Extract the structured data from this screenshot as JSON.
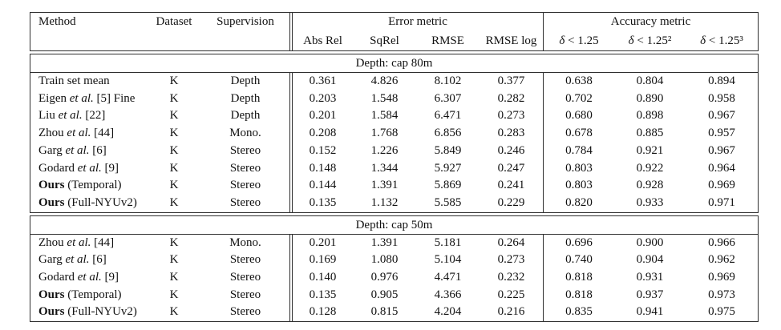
{
  "table": {
    "columns": {
      "method": "Method",
      "dataset": "Dataset",
      "supervision": "Supervision",
      "error_group": "Error metric",
      "accuracy_group": "Accuracy metric",
      "error_cols": [
        "Abs Rel",
        "SqRel",
        "RMSE",
        "RMSE log"
      ],
      "acc_cols": [
        {
          "sym": "δ",
          "cond": " < 1.25"
        },
        {
          "sym": "δ",
          "cond": " < 1.25²"
        },
        {
          "sym": "δ",
          "cond": " < 1.25³"
        }
      ]
    },
    "sections": [
      {
        "title": "Depth: cap 80m",
        "rows": [
          {
            "method": {
              "pre": "Train set mean",
              "it": "",
              "post": "",
              "bold": false
            },
            "dataset": "K",
            "supervision": "Depth",
            "abs_rel": "0.361",
            "sq_rel": "4.826",
            "rmse": "8.102",
            "rmse_log": "0.377",
            "d1": "0.638",
            "d2": "0.804",
            "d3": "0.894"
          },
          {
            "method": {
              "pre": "Eigen ",
              "it": "et al.",
              "post": " [5] Fine",
              "bold": false
            },
            "dataset": "K",
            "supervision": "Depth",
            "abs_rel": "0.203",
            "sq_rel": "1.548",
            "rmse": "6.307",
            "rmse_log": "0.282",
            "d1": "0.702",
            "d2": "0.890",
            "d3": "0.958"
          },
          {
            "method": {
              "pre": "Liu ",
              "it": "et al.",
              "post": " [22]",
              "bold": false
            },
            "dataset": "K",
            "supervision": "Depth",
            "abs_rel": "0.201",
            "sq_rel": "1.584",
            "rmse": "6.471",
            "rmse_log": "0.273",
            "d1": "0.680",
            "d2": "0.898",
            "d3": "0.967"
          },
          {
            "method": {
              "pre": "Zhou ",
              "it": "et al.",
              "post": " [44]",
              "bold": false
            },
            "dataset": "K",
            "supervision": "Mono.",
            "abs_rel": "0.208",
            "sq_rel": "1.768",
            "rmse": "6.856",
            "rmse_log": "0.283",
            "d1": "0.678",
            "d2": "0.885",
            "d3": "0.957"
          },
          {
            "method": {
              "pre": "Garg ",
              "it": "et al.",
              "post": " [6]",
              "bold": false
            },
            "dataset": "K",
            "supervision": "Stereo",
            "abs_rel": "0.152",
            "sq_rel": "1.226",
            "rmse": "5.849",
            "rmse_log": "0.246",
            "d1": "0.784",
            "d2": "0.921",
            "d3": "0.967"
          },
          {
            "method": {
              "pre": "Godard ",
              "it": "et al.",
              "post": " [9]",
              "bold": false
            },
            "dataset": "K",
            "supervision": "Stereo",
            "abs_rel": "0.148",
            "sq_rel": "1.344",
            "rmse": "5.927",
            "rmse_log": "0.247",
            "d1": "0.803",
            "d2": "0.922",
            "d3": "0.964"
          },
          {
            "method": {
              "pre": "Ours",
              "it": "",
              "post": " (Temporal)",
              "bold": true
            },
            "dataset": "K",
            "supervision": "Stereo",
            "abs_rel": "0.144",
            "sq_rel": "1.391",
            "rmse": "5.869",
            "rmse_log": "0.241",
            "d1": "0.803",
            "d2": "0.928",
            "d3": "0.969"
          },
          {
            "method": {
              "pre": "Ours",
              "it": "",
              "post": " (Full-NYUv2)",
              "bold": true
            },
            "dataset": "K",
            "supervision": "Stereo",
            "abs_rel": "0.135",
            "sq_rel": "1.132",
            "rmse": "5.585",
            "rmse_log": "0.229",
            "d1": "0.820",
            "d2": "0.933",
            "d3": "0.971"
          }
        ]
      },
      {
        "title": "Depth: cap 50m",
        "rows": [
          {
            "method": {
              "pre": "Zhou ",
              "it": "et al.",
              "post": " [44]",
              "bold": false
            },
            "dataset": "K",
            "supervision": "Mono.",
            "abs_rel": "0.201",
            "sq_rel": "1.391",
            "rmse": "5.181",
            "rmse_log": "0.264",
            "d1": "0.696",
            "d2": "0.900",
            "d3": "0.966"
          },
          {
            "method": {
              "pre": "Garg ",
              "it": "et al.",
              "post": " [6]",
              "bold": false
            },
            "dataset": "K",
            "supervision": "Stereo",
            "abs_rel": "0.169",
            "sq_rel": "1.080",
            "rmse": "5.104",
            "rmse_log": "0.273",
            "d1": "0.740",
            "d2": "0.904",
            "d3": "0.962"
          },
          {
            "method": {
              "pre": "Godard ",
              "it": "et al.",
              "post": " [9]",
              "bold": false
            },
            "dataset": "K",
            "supervision": "Stereo",
            "abs_rel": "0.140",
            "sq_rel": "0.976",
            "rmse": "4.471",
            "rmse_log": "0.232",
            "d1": "0.818",
            "d2": "0.931",
            "d3": "0.969"
          },
          {
            "method": {
              "pre": "Ours",
              "it": "",
              "post": " (Temporal)",
              "bold": true
            },
            "dataset": "K",
            "supervision": "Stereo",
            "abs_rel": "0.135",
            "sq_rel": "0.905",
            "rmse": "4.366",
            "rmse_log": "0.225",
            "d1": "0.818",
            "d2": "0.937",
            "d3": "0.973"
          },
          {
            "method": {
              "pre": "Ours",
              "it": "",
              "post": " (Full-NYUv2)",
              "bold": true
            },
            "dataset": "K",
            "supervision": "Stereo",
            "abs_rel": "0.128",
            "sq_rel": "0.815",
            "rmse": "4.204",
            "rmse_log": "0.216",
            "d1": "0.835",
            "d2": "0.941",
            "d3": "0.975"
          }
        ]
      }
    ]
  }
}
